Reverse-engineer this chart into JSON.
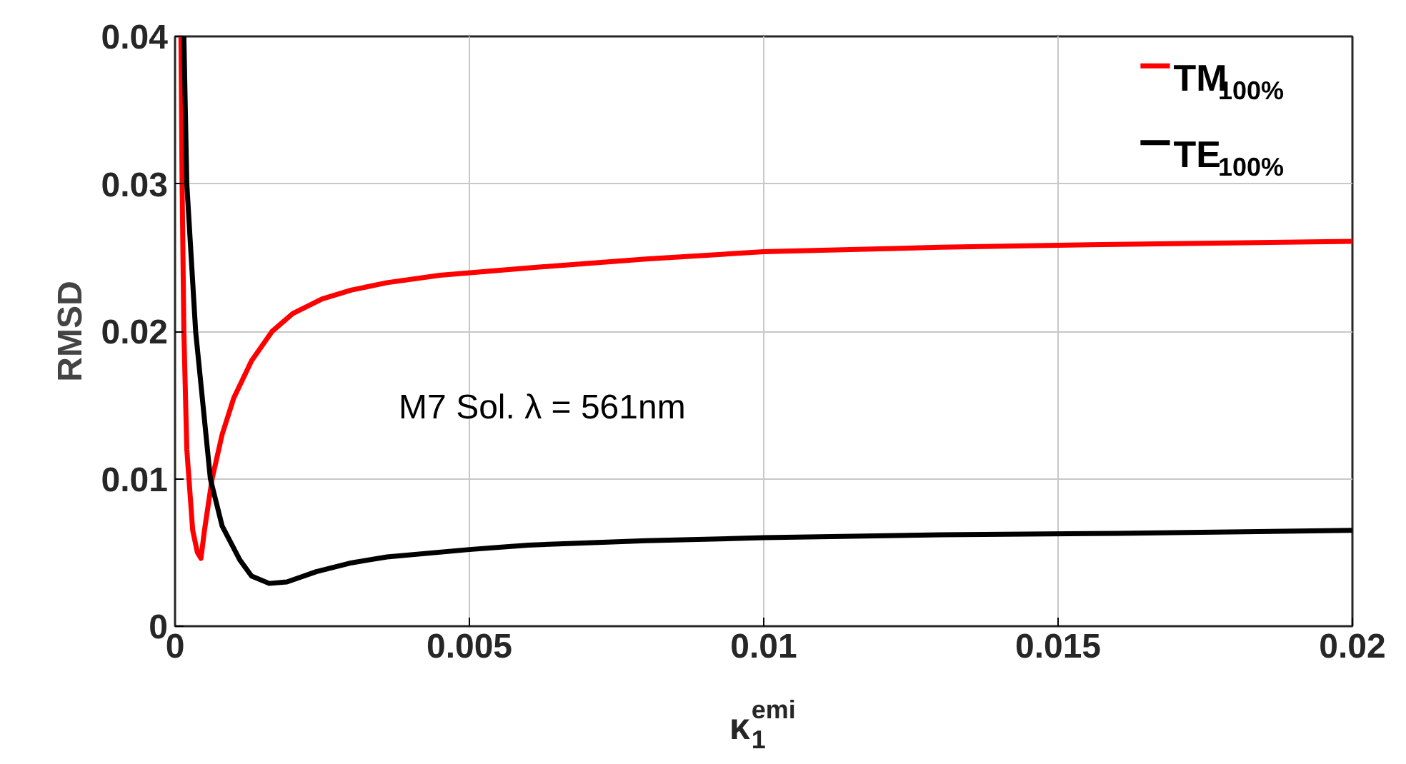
{
  "chart_data": {
    "type": "line",
    "xlabel": "κ$_{1}$$^{emi}$",
    "ylabel": "RMSD",
    "annotations": [
      "M7 Sol. λ = 561nm"
    ],
    "xlim": [
      0,
      0.02
    ],
    "ylim": [
      0,
      0.04
    ],
    "xticks": [
      0,
      0.005,
      0.01,
      0.015,
      0.02
    ],
    "yticks": [
      0,
      0.01,
      0.02,
      0.03,
      0.04
    ],
    "grid": true,
    "legend": "top right",
    "line_style": "solid",
    "marker": "none",
    "series": [
      {
        "name": "TM$_{100%}$",
        "color": "#ff0000",
        "x": [
          0.0001,
          0.00012,
          0.00015,
          0.0002,
          0.0003,
          0.00038,
          0.00044,
          0.0005,
          0.00063,
          0.0008,
          0.001,
          0.0013,
          0.00165,
          0.002,
          0.0025,
          0.003,
          0.0036,
          0.0045,
          0.006,
          0.008,
          0.01,
          0.013,
          0.016,
          0.02
        ],
        "values": [
          0.04,
          0.03,
          0.02,
          0.012,
          0.0065,
          0.005,
          0.0046,
          0.0065,
          0.01,
          0.013,
          0.0155,
          0.018,
          0.02,
          0.0212,
          0.0222,
          0.0228,
          0.0233,
          0.0238,
          0.0243,
          0.0249,
          0.0254,
          0.0257,
          0.0259,
          0.0261
        ]
      },
      {
        "name": "TE$_{100%}$",
        "color": "#000000",
        "x": [
          0.00015,
          0.0002,
          0.00035,
          0.0006,
          0.0008,
          0.0011,
          0.0013,
          0.0016,
          0.0019,
          0.0024,
          0.003,
          0.0036,
          0.005,
          0.006,
          0.008,
          0.01,
          0.013,
          0.016,
          0.02
        ],
        "values": [
          0.04,
          0.03,
          0.02,
          0.01,
          0.0068,
          0.0045,
          0.0034,
          0.0029,
          0.003,
          0.0037,
          0.0043,
          0.0047,
          0.0052,
          0.0055,
          0.0058,
          0.006,
          0.0062,
          0.0063,
          0.0065
        ]
      }
    ]
  }
}
